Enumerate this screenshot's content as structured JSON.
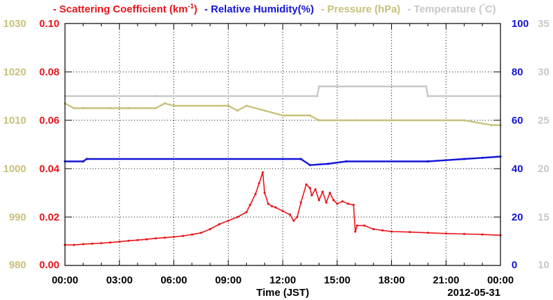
{
  "chart_data": {
    "type": "line",
    "xlabel": "Time (JST)",
    "date_label": "2012-05-31",
    "x_ticks": [
      "00:00",
      "03:00",
      "06:00",
      "09:00",
      "12:00",
      "15:00",
      "18:00",
      "21:00",
      "00:00"
    ],
    "xlim": [
      0,
      24
    ],
    "grid": true,
    "legend": [
      {
        "prefix": "-",
        "text": "Scattering Coefficient (km",
        "sup": "-1",
        "suffix": ")",
        "color": "#e8141a"
      },
      {
        "prefix": "-",
        "text": "Relative Humidity(%)",
        "color": "#1414d8"
      },
      {
        "prefix": "-",
        "text": "Pressure (hPa)",
        "color": "#c8c07a"
      },
      {
        "prefix": "-",
        "text": "Temperature (",
        "sup": "°",
        "suffix": "C)",
        "color": "#c8c8c8"
      }
    ],
    "axes": {
      "scattering": {
        "side": "left-inner",
        "ticks": [
          "0.00",
          "0.02",
          "0.04",
          "0.06",
          "0.08",
          "0.10"
        ],
        "ylim": [
          0,
          0.1
        ],
        "color": "#e8141a"
      },
      "pressure": {
        "side": "left-outer",
        "ticks": [
          "980",
          "990",
          "1000",
          "1010",
          "1020",
          "1030"
        ],
        "ylim": [
          980,
          1030
        ],
        "color": "#c8c07a"
      },
      "humidity": {
        "side": "right-inner",
        "ticks": [
          "0",
          "20",
          "40",
          "60",
          "80",
          "100"
        ],
        "ylim": [
          0,
          100
        ],
        "color": "#1414d8"
      },
      "temperature": {
        "side": "right-outer",
        "ticks": [
          "10",
          "15",
          "20",
          "25",
          "30",
          "35"
        ],
        "ylim": [
          10,
          35
        ],
        "color": "#c8c8c8"
      }
    },
    "series": [
      {
        "name": "Scattering Coefficient",
        "axis": "scattering",
        "color": "#e8141a",
        "x": [
          0.0,
          0.5,
          1.0,
          1.5,
          2.0,
          2.5,
          3.0,
          3.5,
          4.0,
          4.5,
          5.0,
          5.5,
          6.0,
          6.5,
          7.0,
          7.5,
          8.0,
          8.5,
          9.0,
          9.5,
          10.0,
          10.2,
          10.5,
          10.7,
          10.9,
          11.0,
          11.2,
          11.4,
          11.6,
          12.0,
          12.4,
          12.6,
          12.8,
          13.0,
          13.3,
          13.5,
          13.6,
          13.8,
          14.0,
          14.2,
          14.4,
          14.6,
          14.8,
          15.0,
          15.3,
          15.6,
          15.9,
          16.0,
          16.1,
          16.5,
          17.0,
          17.5,
          18.0,
          19.0,
          20.0,
          21.0,
          22.0,
          23.0,
          24.0
        ],
        "values": [
          0.0085,
          0.0085,
          0.0088,
          0.009,
          0.0092,
          0.0095,
          0.0098,
          0.0102,
          0.0105,
          0.0108,
          0.0112,
          0.0115,
          0.0118,
          0.0122,
          0.0128,
          0.0135,
          0.015,
          0.017,
          0.0185,
          0.02,
          0.022,
          0.025,
          0.0295,
          0.034,
          0.0385,
          0.03,
          0.0255,
          0.0245,
          0.024,
          0.0225,
          0.021,
          0.0185,
          0.02,
          0.026,
          0.0335,
          0.032,
          0.029,
          0.0315,
          0.027,
          0.0305,
          0.026,
          0.03,
          0.027,
          0.0255,
          0.0265,
          0.0255,
          0.025,
          0.014,
          0.0165,
          0.0165,
          0.015,
          0.0145,
          0.014,
          0.0138,
          0.0135,
          0.0132,
          0.013,
          0.0128,
          0.0125
        ]
      },
      {
        "name": "Relative Humidity",
        "axis": "humidity",
        "color": "#1414d8",
        "x": [
          0.0,
          1.0,
          1.2,
          12.0,
          13.0,
          13.5,
          14.5,
          15.5,
          20.0,
          22.0,
          23.0,
          24.0
        ],
        "values": [
          43,
          43,
          44,
          44,
          44,
          41.5,
          42,
          43,
          43,
          44,
          44.5,
          45
        ]
      },
      {
        "name": "Pressure",
        "axis": "pressure",
        "color": "#c8c07a",
        "x": [
          0.0,
          0.5,
          1.0,
          2.5,
          3.5,
          5.0,
          5.5,
          6.0,
          9.0,
          9.5,
          10.0,
          11.0,
          12.0,
          13.5,
          14.0,
          16.0,
          17.0,
          18.0,
          22.0,
          23.5,
          24.0
        ],
        "values": [
          1013.5,
          1012.5,
          1012.5,
          1012.5,
          1012.5,
          1012.5,
          1013.5,
          1013,
          1013,
          1012,
          1013,
          1012,
          1011,
          1011,
          1010,
          1010,
          1010,
          1010,
          1010,
          1009,
          1009
        ]
      },
      {
        "name": "Temperature",
        "axis": "temperature",
        "color": "#c8c8c8",
        "x": [
          0.0,
          5.0,
          5.01,
          13.9,
          14.0,
          19.9,
          20.0,
          24.0
        ],
        "values": [
          27.5,
          27.5,
          27.5,
          27.5,
          28.5,
          28.5,
          27.5,
          27.5
        ]
      }
    ]
  }
}
